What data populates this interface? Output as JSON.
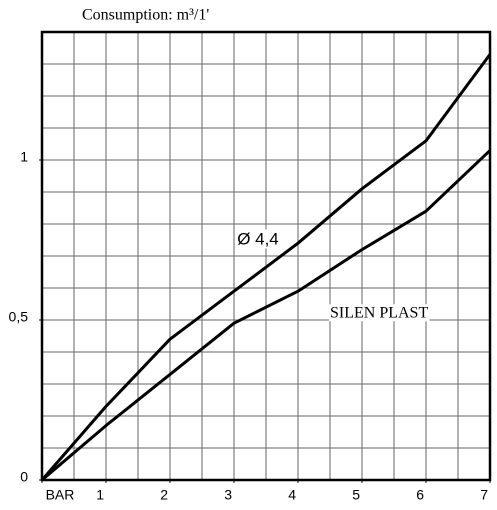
{
  "chart_data": {
    "type": "line",
    "title": "Consumption: m³/1'",
    "x": [
      0,
      1,
      2,
      3,
      4,
      5,
      6,
      7
    ],
    "series": [
      {
        "color": "#000000",
        "values": [
          0,
          0.23,
          0.44,
          0.59,
          0.74,
          0.91,
          1.06,
          1.33
        ]
      },
      {
        "color": "#000000",
        "values": [
          0,
          0.17,
          0.33,
          0.49,
          0.59,
          0.72,
          0.84,
          1.03
        ]
      }
    ],
    "xlim": [
      0,
      7
    ],
    "xticks": [
      {
        "value": 0,
        "label": "BAR"
      },
      1,
      2,
      3,
      4,
      5,
      6,
      7
    ],
    "ylim": [
      0,
      1.4
    ],
    "yticks": [
      0,
      {
        "value": 0.5,
        "label": "0,5"
      },
      1
    ],
    "grid": true,
    "x_grid_step": 0.5,
    "y_grid_step": 0.1,
    "annotations": [
      {
        "text": "Ø 4,4",
        "x": 3.05,
        "y": 0.75
      },
      {
        "text": "SILEN PLAST",
        "x": 4.5,
        "y": 0.52
      }
    ]
  }
}
